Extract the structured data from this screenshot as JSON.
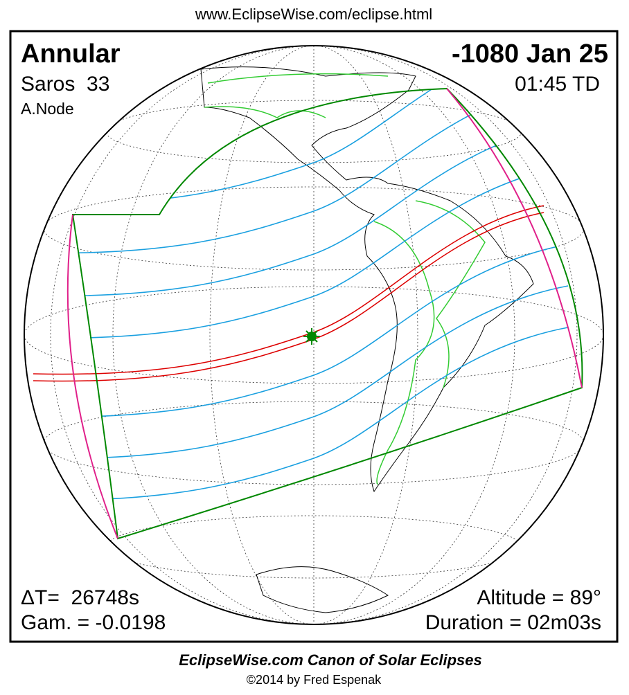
{
  "header": {
    "url": "www.EclipseWise.com/eclipse.html"
  },
  "eclipse": {
    "type": "Annular",
    "saros": "Saros  33",
    "node": "A.Node",
    "date": "-1080 Jan 25",
    "time": "01:45 TD",
    "delta_t": "ΔT=  26748s",
    "gamma": "Gam. = -0.0198",
    "altitude": "Altitude = 89°",
    "duration": "Duration = 02m03s"
  },
  "footer": {
    "title": "EclipseWise.com Canon of Solar Eclipses",
    "credit": "©2014 by Fred Espenak"
  }
}
